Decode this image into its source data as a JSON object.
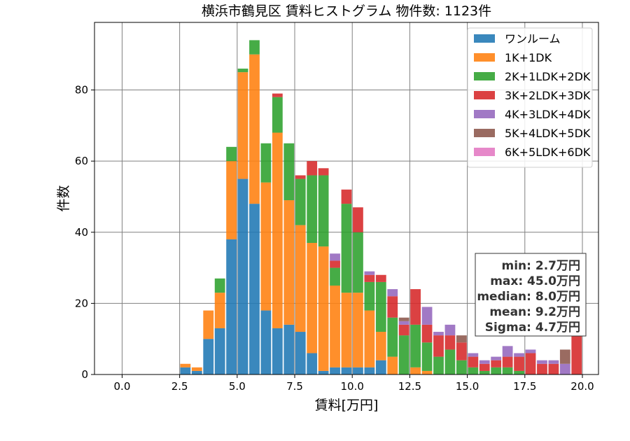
{
  "chart_data": {
    "type": "bar",
    "title": "横浜市鶴見区 賃料ヒストグラム  物件数: 1123件",
    "xlabel": "賃料[万円]",
    "ylabel": "件数",
    "xlim": [
      -1.2,
      20.7
    ],
    "ylim": [
      0,
      99
    ],
    "xticks": [
      0.0,
      2.5,
      5.0,
      7.5,
      10.0,
      12.5,
      15.0,
      17.5,
      20.0
    ],
    "xtick_labels": [
      "0.0",
      "2.5",
      "5.0",
      "7.5",
      "10.0",
      "12.5",
      "15.0",
      "17.5",
      "20.0"
    ],
    "yticks": [
      0,
      20,
      40,
      60,
      80
    ],
    "ytick_labels": [
      "0",
      "20",
      "40",
      "60",
      "80"
    ],
    "grid": true,
    "stacked": true,
    "legend_position": "top-right",
    "bin_width": 0.5,
    "bin_starts": [
      2.5,
      3.0,
      3.5,
      4.0,
      4.5,
      5.0,
      5.5,
      6.0,
      6.5,
      7.0,
      7.5,
      8.0,
      8.5,
      9.0,
      9.5,
      10.0,
      10.5,
      11.0,
      11.5,
      12.0,
      12.5,
      13.0,
      13.5,
      14.0,
      14.5,
      15.0,
      15.5,
      16.0,
      16.5,
      17.0,
      17.5,
      18.0,
      18.5,
      19.0,
      19.5
    ],
    "series": [
      {
        "name": "ワンルーム",
        "color": "#1f77b4",
        "values": [
          2,
          1,
          10,
          13,
          38,
          55,
          48,
          18,
          13,
          14,
          12,
          6,
          1,
          2,
          2,
          2,
          2,
          4,
          0,
          0,
          0,
          0,
          0,
          0,
          0,
          0,
          0,
          0,
          0,
          0,
          0,
          0,
          0,
          0,
          0
        ]
      },
      {
        "name": "1K+1DK",
        "color": "#ff7f0e",
        "values": [
          1,
          1,
          8,
          10,
          22,
          30,
          42,
          36,
          55,
          35,
          30,
          31,
          35,
          23,
          21,
          21,
          16,
          8,
          5,
          0,
          2,
          1,
          0,
          0,
          0,
          0,
          0,
          0,
          0,
          0,
          0,
          0,
          0,
          0,
          0
        ]
      },
      {
        "name": "2K+1LDK+2DK",
        "color": "#2ca02c",
        "values": [
          0,
          0,
          0,
          4,
          4,
          1,
          4,
          11,
          10,
          16,
          13,
          19,
          20,
          5,
          25,
          17,
          8,
          14,
          11,
          11,
          12,
          8,
          5,
          7,
          4,
          2,
          1,
          2,
          2,
          1,
          0,
          0,
          0,
          0,
          0
        ]
      },
      {
        "name": "3K+2LDK+3DK",
        "color": "#d62728",
        "values": [
          0,
          0,
          0,
          0,
          0,
          0,
          0,
          0,
          1,
          0,
          1,
          4,
          2,
          2,
          4,
          7,
          2,
          2,
          6,
          3,
          10,
          5,
          6,
          4,
          5,
          3,
          2,
          2,
          3,
          4,
          6,
          3,
          3,
          0,
          14
        ]
      },
      {
        "name": "4K+3LDK+4DK",
        "color": "#9467bd",
        "values": [
          0,
          0,
          0,
          0,
          0,
          0,
          0,
          0,
          0,
          0,
          0,
          0,
          0,
          2,
          0,
          0,
          1,
          0,
          2,
          1,
          0,
          5,
          1,
          3,
          0,
          1,
          1,
          1,
          3,
          1,
          1,
          1,
          1,
          3,
          0
        ]
      },
      {
        "name": "5K+4LDK+5DK",
        "color": "#8c564b",
        "values": [
          0,
          0,
          0,
          0,
          0,
          0,
          0,
          0,
          0,
          0,
          0,
          0,
          0,
          0,
          0,
          0,
          0,
          0,
          0,
          1,
          0,
          0,
          0,
          0,
          2,
          0,
          0,
          0,
          0,
          0,
          0,
          0,
          0,
          4,
          0
        ]
      },
      {
        "name": "6K+5LDK+6DK",
        "color": "#e377c2",
        "values": [
          0,
          0,
          0,
          0,
          0,
          0,
          0,
          0,
          0,
          0,
          0,
          0,
          0,
          0,
          0,
          0,
          0,
          0,
          0,
          0,
          0,
          0,
          0,
          0,
          0,
          0,
          0,
          0,
          0,
          0,
          0,
          0,
          0,
          0,
          0
        ]
      }
    ],
    "stats": [
      "min: 2.7万円",
      "max: 45.0万円",
      "median: 8.0万円",
      "mean: 9.2万円",
      "Sigma: 4.7万円"
    ]
  }
}
